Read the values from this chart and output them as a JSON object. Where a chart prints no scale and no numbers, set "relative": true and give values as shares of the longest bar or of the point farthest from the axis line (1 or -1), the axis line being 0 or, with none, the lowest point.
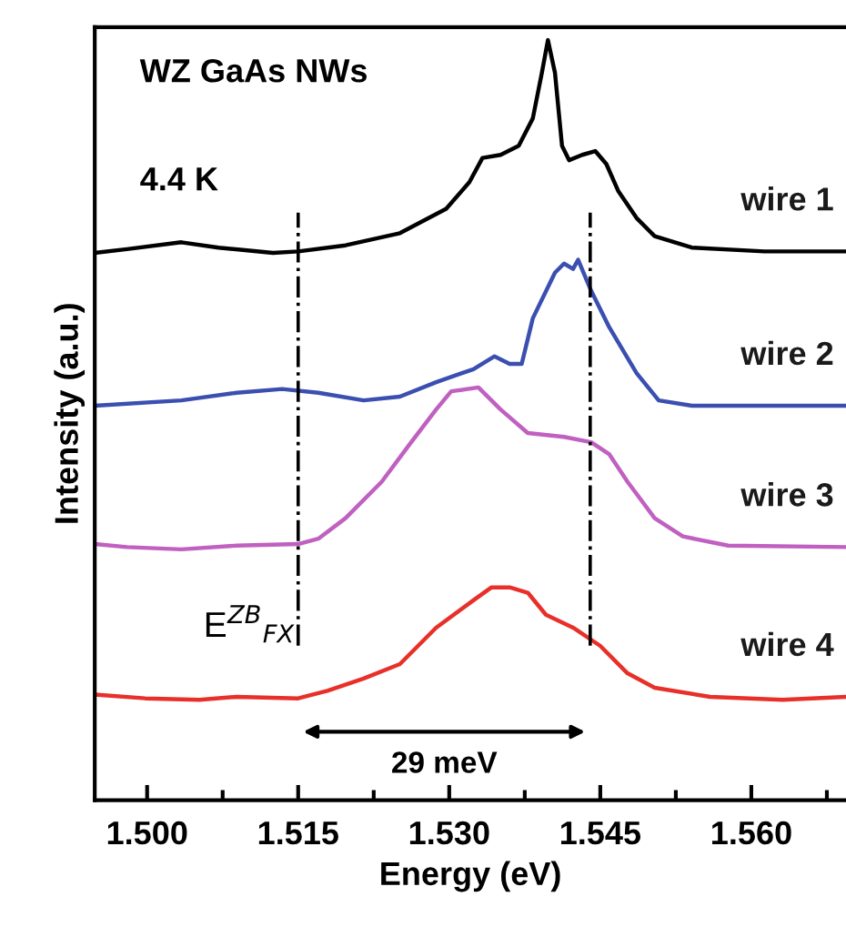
{
  "chart_data": {
    "type": "line",
    "relative": true,
    "xlabel": "Energy (eV)",
    "ylabel": "Intensity (a.u.)",
    "xlim": [
      1.4948,
      1.5694
    ],
    "xticks": [
      {
        "value": 1.5,
        "label": "1.500"
      },
      {
        "value": 1.5075,
        "label": null
      },
      {
        "value": 1.515,
        "label": "1.515"
      },
      {
        "value": 1.5225,
        "label": null
      },
      {
        "value": 1.53,
        "label": "1.530"
      },
      {
        "value": 1.5375,
        "label": null
      },
      {
        "value": 1.545,
        "label": "1.545"
      },
      {
        "value": 1.5525,
        "label": null
      },
      {
        "value": 1.56,
        "label": "1.560"
      },
      {
        "value": 1.5675,
        "label": null
      }
    ],
    "grid": false,
    "legend": false,
    "marker": "none",
    "line_style": "solid",
    "ref_lines": [
      {
        "axis": "x",
        "value": 1.515,
        "color": "#000000",
        "line_style": "dashdot"
      },
      {
        "axis": "x",
        "value": 1.544,
        "color": "#000000",
        "line_style": "dashdot"
      }
    ],
    "annotations": [
      "WZ GaAs NWs",
      "4.4 K",
      "E$^{ZB}$$_{FX}$",
      "29 meV"
    ],
    "series": [
      {
        "name": "wire 1",
        "color": "#000000",
        "x": [
          1.4948,
          1.498,
          1.5034,
          1.5071,
          1.5125,
          1.515,
          1.5197,
          1.5251,
          1.5297,
          1.532,
          1.5333,
          1.5351,
          1.5369,
          1.5383,
          1.5392,
          1.5398,
          1.5405,
          1.5412,
          1.5419,
          1.5432,
          1.5445,
          1.5456,
          1.5468,
          1.5486,
          1.5504,
          1.5541,
          1.5613,
          1.5694
        ],
        "values": [
          0.72,
          0.725,
          0.734,
          0.727,
          0.72,
          0.722,
          0.73,
          0.746,
          0.778,
          0.813,
          0.845,
          0.849,
          0.861,
          0.897,
          0.957,
          1.0,
          0.957,
          0.861,
          0.842,
          0.849,
          0.854,
          0.837,
          0.801,
          0.766,
          0.742,
          0.727,
          0.722,
          0.722
        ]
      },
      {
        "name": "wire 2",
        "color": "#3a4fb0",
        "x": [
          1.4948,
          1.5034,
          1.5089,
          1.5134,
          1.517,
          1.5215,
          1.5251,
          1.5287,
          1.5324,
          1.5345,
          1.536,
          1.5372,
          1.5383,
          1.5405,
          1.5414,
          1.5423,
          1.5428,
          1.5441,
          1.5459,
          1.5486,
          1.5508,
          1.5541,
          1.5694
        ],
        "values": [
          0.519,
          0.526,
          0.536,
          0.541,
          0.536,
          0.526,
          0.531,
          0.55,
          0.567,
          0.584,
          0.574,
          0.574,
          0.634,
          0.694,
          0.706,
          0.699,
          0.711,
          0.67,
          0.622,
          0.562,
          0.526,
          0.519,
          0.519
        ]
      },
      {
        "name": "wire 3",
        "color": "#c060c0",
        "x": [
          1.4948,
          1.498,
          1.5034,
          1.5089,
          1.515,
          1.517,
          1.5197,
          1.5233,
          1.526,
          1.5287,
          1.5302,
          1.5329,
          1.5351,
          1.5378,
          1.5414,
          1.5441,
          1.5459,
          1.5477,
          1.5504,
          1.5532,
          1.5577,
          1.5694
        ],
        "values": [
          0.337,
          0.333,
          0.33,
          0.335,
          0.337,
          0.344,
          0.371,
          0.419,
          0.467,
          0.514,
          0.538,
          0.543,
          0.514,
          0.483,
          0.478,
          0.471,
          0.455,
          0.419,
          0.371,
          0.347,
          0.335,
          0.333
        ]
      },
      {
        "name": "wire 4",
        "color": "#e8302a",
        "x": [
          1.4948,
          1.4998,
          1.5052,
          1.5089,
          1.515,
          1.5179,
          1.5215,
          1.5251,
          1.5287,
          1.5324,
          1.5342,
          1.536,
          1.5378,
          1.5396,
          1.5423,
          1.545,
          1.5477,
          1.5504,
          1.5559,
          1.5631,
          1.5694
        ],
        "values": [
          0.139,
          0.134,
          0.132,
          0.136,
          0.134,
          0.144,
          0.16,
          0.179,
          0.227,
          0.263,
          0.28,
          0.28,
          0.273,
          0.244,
          0.227,
          0.203,
          0.167,
          0.148,
          0.136,
          0.132,
          0.136
        ]
      }
    ]
  }
}
